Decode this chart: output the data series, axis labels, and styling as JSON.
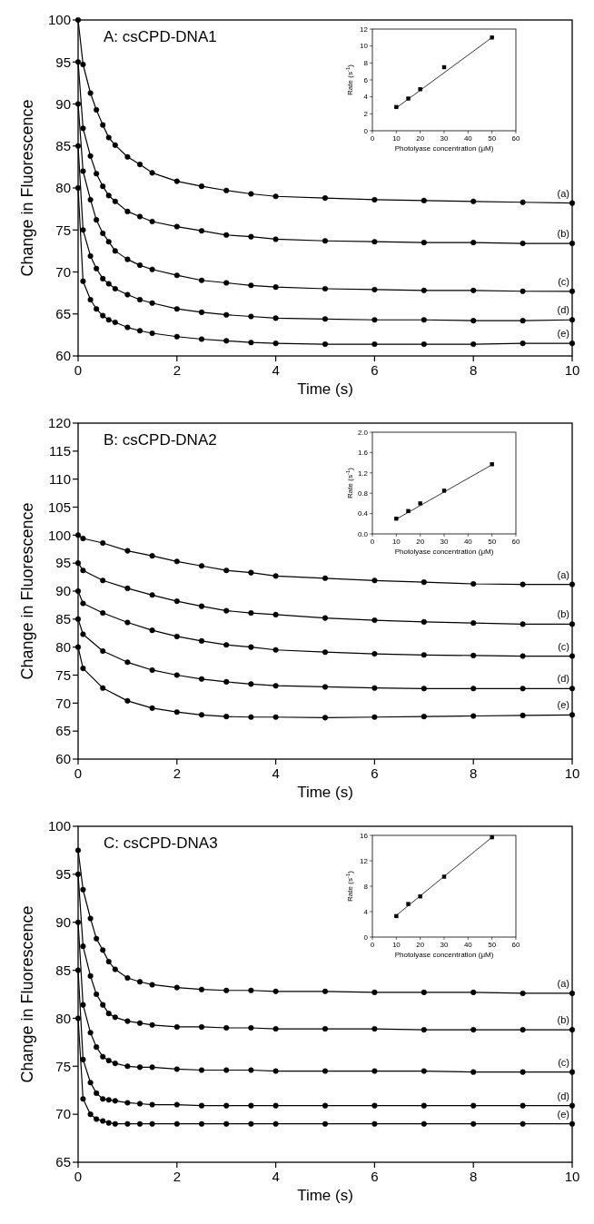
{
  "chart_data": [
    {
      "type": "line",
      "title": "A: csCPD-DNA1",
      "xlabel": "Time (s)",
      "ylabel": "Change in Fluorescence",
      "marker": "circle",
      "x": [
        0,
        0.1,
        0.25,
        0.37,
        0.5,
        0.62,
        0.75,
        1,
        1.25,
        1.5,
        2,
        2.5,
        3,
        3.5,
        4,
        5,
        6,
        7,
        8,
        9,
        10
      ],
      "xlim": [
        0,
        10
      ],
      "xticks": [
        0,
        2,
        4,
        6,
        8,
        10
      ],
      "ylim": [
        60,
        100
      ],
      "yticks": [
        60,
        65,
        70,
        75,
        80,
        85,
        90,
        95,
        100
      ],
      "series": [
        {
          "name": "(a)",
          "color": "#000000",
          "values": [
            100,
            94.7,
            91.3,
            89.3,
            87.5,
            86,
            85.1,
            83.7,
            82.8,
            81.8,
            80.8,
            80.2,
            79.7,
            79.3,
            79.0,
            78.8,
            78.6,
            78.5,
            78.4,
            78.3,
            78.2
          ]
        },
        {
          "name": "(b)",
          "color": "#000000",
          "values": [
            95,
            87.1,
            83.8,
            81.7,
            80.2,
            79.1,
            78.4,
            77.2,
            76.6,
            76.0,
            75.4,
            74.9,
            74.4,
            74.2,
            73.9,
            73.7,
            73.6,
            73.5,
            73.5,
            73.4,
            73.4
          ]
        },
        {
          "name": "(c)",
          "color": "#000000",
          "values": [
            90,
            82,
            78.6,
            76.2,
            74.6,
            73.6,
            72.5,
            71.5,
            70.8,
            70.3,
            69.6,
            69.0,
            68.7,
            68.4,
            68.2,
            68.0,
            67.9,
            67.8,
            67.8,
            67.7,
            67.7
          ]
        },
        {
          "name": "(d)",
          "color": "#000000",
          "values": [
            85,
            75,
            71.9,
            70.4,
            69.2,
            68.6,
            68.0,
            67.3,
            66.7,
            66.3,
            65.6,
            65.2,
            64.9,
            64.7,
            64.5,
            64.4,
            64.3,
            64.3,
            64.2,
            64.2,
            64.3
          ]
        },
        {
          "name": "(e)",
          "color": "#000000",
          "values": [
            80,
            68.9,
            66.7,
            65.6,
            64.8,
            64.3,
            64.0,
            63.4,
            63.0,
            62.7,
            62.3,
            62.0,
            61.8,
            61.6,
            61.5,
            61.4,
            61.4,
            61.4,
            61.4,
            61.5,
            61.5
          ]
        }
      ]
    },
    {
      "type": "scatter",
      "xlabel": "Photolyase concentration (μM)",
      "ylabel": "Rate (s$^{-1}$)",
      "marker": "square",
      "xlim": [
        0,
        60
      ],
      "xticks": [
        0,
        10,
        20,
        30,
        40,
        50,
        60
      ],
      "ylim": [
        0,
        12
      ],
      "yticks": [
        0,
        2,
        4,
        6,
        8,
        10,
        12
      ],
      "series": [
        {
          "color": "#000000",
          "x": [
            10,
            15,
            20,
            30,
            50
          ],
          "values": [
            2.8,
            3.8,
            4.9,
            7.5,
            11.0
          ]
        },
        {
          "type": "line",
          "marker": "none",
          "color": "#000000",
          "x": [
            10,
            50
          ],
          "values": [
            2.7,
            11.0
          ]
        }
      ]
    },
    {
      "type": "line",
      "title": "B: csCPD-DNA2",
      "xlabel": "Time (s)",
      "ylabel": "Change in Fluorescence",
      "marker": "circle",
      "x": [
        0,
        0.1,
        0.5,
        1,
        1.5,
        2,
        2.5,
        3,
        3.5,
        4,
        5,
        6,
        7,
        8,
        9,
        10
      ],
      "xlim": [
        0,
        10
      ],
      "xticks": [
        0,
        2,
        4,
        6,
        8,
        10
      ],
      "ylim": [
        60,
        120
      ],
      "yticks": [
        60,
        65,
        70,
        75,
        80,
        85,
        90,
        95,
        100,
        105,
        110,
        115,
        120
      ],
      "series": [
        {
          "name": "(a)",
          "color": "#000000",
          "values": [
            100,
            99.4,
            98.6,
            97.2,
            96.3,
            95.3,
            94.5,
            93.7,
            93.3,
            92.7,
            92.3,
            91.9,
            91.6,
            91.3,
            91.2,
            91.2
          ]
        },
        {
          "name": "(b)",
          "color": "#000000",
          "values": [
            95,
            93.7,
            91.9,
            90.5,
            89.3,
            88.2,
            87.3,
            86.5,
            86.1,
            85.8,
            85.2,
            84.8,
            84.5,
            84.3,
            84.1,
            84.1
          ]
        },
        {
          "name": "(c)",
          "color": "#000000",
          "values": [
            90,
            87.8,
            86.1,
            84.4,
            83.0,
            81.9,
            81.1,
            80.4,
            80.0,
            79.5,
            79.1,
            78.8,
            78.6,
            78.5,
            78.4,
            78.4
          ]
        },
        {
          "name": "(d)",
          "color": "#000000",
          "values": [
            85,
            82.3,
            79.3,
            77.3,
            75.9,
            75.0,
            74.3,
            73.8,
            73.4,
            73.1,
            72.9,
            72.7,
            72.6,
            72.6,
            72.6,
            72.6
          ]
        },
        {
          "name": "(e)",
          "color": "#000000",
          "values": [
            80,
            76.2,
            72.7,
            70.4,
            69.1,
            68.4,
            67.9,
            67.6,
            67.5,
            67.5,
            67.4,
            67.5,
            67.6,
            67.7,
            67.8,
            67.9
          ]
        }
      ]
    },
    {
      "type": "scatter",
      "xlabel": "Photolyase concentration (μM)",
      "ylabel": "Rate (s$^{-1}$)",
      "marker": "square",
      "xlim": [
        0,
        60
      ],
      "xticks": [
        0,
        10,
        20,
        30,
        40,
        50,
        60
      ],
      "ylim": [
        0,
        2
      ],
      "yticks": [
        {
          "value": 0,
          "label": "0.0"
        },
        {
          "value": 0.4,
          "label": "0.4"
        },
        {
          "value": 0.8,
          "label": "0.8"
        },
        {
          "value": 1.2,
          "label": "1.2"
        },
        {
          "value": 1.6,
          "label": "1.6"
        },
        {
          "value": 2,
          "label": "2.0"
        }
      ],
      "series": [
        {
          "color": "#000000",
          "x": [
            10,
            15,
            20,
            30,
            50
          ],
          "values": [
            0.3,
            0.45,
            0.6,
            0.85,
            1.37
          ]
        },
        {
          "type": "line",
          "marker": "none",
          "color": "#000000",
          "x": [
            10,
            50
          ],
          "values": [
            0.29,
            1.36
          ]
        }
      ]
    },
    {
      "type": "line",
      "title": "C: csCPD-DNA3",
      "xlabel": "Time (s)",
      "ylabel": "Change in Fluorescence",
      "marker": "circle",
      "x": [
        0,
        0.1,
        0.25,
        0.37,
        0.5,
        0.62,
        0.75,
        1,
        1.25,
        1.5,
        2,
        2.5,
        3,
        3.5,
        4,
        5,
        6,
        7,
        8,
        9,
        10
      ],
      "xlim": [
        0,
        10
      ],
      "xticks": [
        0,
        2,
        4,
        6,
        8,
        10
      ],
      "ylim": [
        65,
        100
      ],
      "yticks": [
        65,
        70,
        75,
        80,
        85,
        90,
        95,
        100
      ],
      "series": [
        {
          "name": "(a)",
          "color": "#000000",
          "values": [
            97.5,
            93.4,
            90.4,
            88.3,
            87.1,
            85.9,
            85.1,
            84.2,
            83.8,
            83.5,
            83.2,
            83.0,
            82.9,
            82.9,
            82.8,
            82.8,
            82.7,
            82.7,
            82.7,
            82.6,
            82.6
          ]
        },
        {
          "name": "(b)",
          "color": "#000000",
          "values": [
            95,
            87.5,
            84.4,
            82.5,
            81.4,
            80.5,
            80.1,
            79.7,
            79.5,
            79.3,
            79.1,
            79.1,
            79.0,
            79.0,
            78.9,
            78.9,
            78.9,
            78.8,
            78.8,
            78.8,
            78.8
          ]
        },
        {
          "name": "(c)",
          "color": "#000000",
          "values": [
            90,
            81.4,
            78.5,
            77.0,
            76.0,
            75.6,
            75.3,
            75.0,
            74.9,
            74.9,
            74.7,
            74.6,
            74.6,
            74.6,
            74.5,
            74.5,
            74.5,
            74.5,
            74.4,
            74.4,
            74.4
          ]
        },
        {
          "name": "(d)",
          "color": "#000000",
          "values": [
            85,
            75.7,
            73.3,
            72.2,
            71.6,
            71.5,
            71.4,
            71.2,
            71.1,
            71.0,
            71.0,
            70.9,
            70.9,
            70.9,
            70.9,
            70.9,
            70.9,
            70.9,
            70.9,
            70.9,
            70.9
          ]
        },
        {
          "name": "(e)",
          "color": "#000000",
          "values": [
            80,
            71.6,
            70.0,
            69.5,
            69.3,
            69.1,
            69.0,
            69.0,
            69.0,
            69.0,
            69.0,
            69.0,
            69.0,
            69.0,
            69.0,
            69.0,
            69.0,
            69.0,
            69.0,
            69.0,
            69.0
          ]
        }
      ]
    },
    {
      "type": "scatter",
      "xlabel": "Photolyase concentration (μM)",
      "ylabel": "Rate (s$^{-1}$)",
      "marker": "square",
      "xlim": [
        0,
        60
      ],
      "xticks": [
        0,
        10,
        20,
        30,
        40,
        50,
        60
      ],
      "ylim": [
        0,
        16
      ],
      "yticks": [
        0,
        4,
        8,
        12,
        16
      ],
      "series": [
        {
          "color": "#000000",
          "x": [
            10,
            15,
            20,
            30,
            50
          ],
          "values": [
            3.3,
            5.2,
            6.4,
            9.5,
            15.7
          ]
        },
        {
          "type": "line",
          "marker": "none",
          "color": "#000000",
          "x": [
            10,
            50
          ],
          "values": [
            3.4,
            15.7
          ]
        }
      ]
    }
  ]
}
